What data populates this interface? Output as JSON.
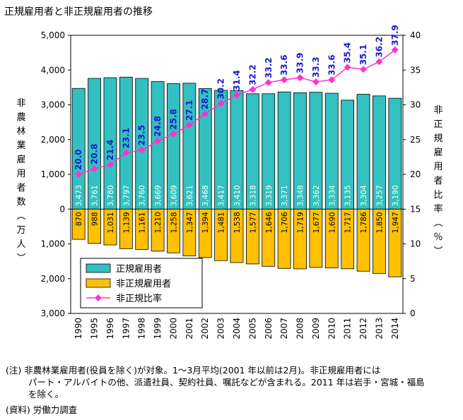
{
  "chart_data": {
    "type": "bar+line",
    "title": "正規雇用者と非正規雇用者の推移",
    "categories": [
      "1990",
      "1995",
      "1996",
      "1997",
      "1998",
      "1999",
      "2000",
      "2001",
      "2002",
      "2003",
      "2004",
      "2005",
      "2006",
      "2007",
      "2008",
      "2009",
      "2010",
      "2011",
      "2012",
      "2013",
      "2014"
    ],
    "series": [
      {
        "name": "正規雇用者",
        "type": "bar",
        "axis": "left",
        "direction": "up",
        "color": "#33c0c0",
        "values": [
          3473,
          3761,
          3780,
          3797,
          3760,
          3669,
          3609,
          3621,
          3468,
          3417,
          3410,
          3318,
          3319,
          3371,
          3348,
          3362,
          3334,
          3135,
          3304,
          3257,
          3190
        ],
        "labels": [
          "3,473",
          "3,761",
          "3,780",
          "3,797",
          "3,760",
          "3,669",
          "3,609",
          "3,621",
          "3,468",
          "3,417",
          "3,410",
          "3,318",
          "3,319",
          "3,371",
          "3,348",
          "3,362",
          "3,334",
          "3,135",
          "3,304",
          "3,257",
          "3,190"
        ]
      },
      {
        "name": "非正規雇用者",
        "type": "bar",
        "axis": "left",
        "direction": "down",
        "color": "#ffc000",
        "values": [
          870,
          988,
          1031,
          1139,
          1161,
          1210,
          1258,
          1347,
          1394,
          1481,
          1538,
          1577,
          1646,
          1706,
          1719,
          1677,
          1690,
          1717,
          1786,
          1850,
          1947
        ],
        "labels": [
          "870",
          "988",
          "1,031",
          "1,139",
          "1,161",
          "1,210",
          "1,258",
          "1,347",
          "1,394",
          "1,481",
          "1,538",
          "1,577",
          "1,646",
          "1,706",
          "1,719",
          "1,677",
          "1,690",
          "1,717",
          "1,786",
          "1,850",
          "1,947"
        ]
      },
      {
        "name": "非正規比率",
        "type": "line",
        "axis": "right",
        "color": "#ff33cc",
        "label_color": "#1a1acc",
        "values": [
          20.0,
          20.8,
          21.4,
          23.1,
          23.5,
          24.8,
          25.8,
          27.1,
          28.7,
          30.2,
          31.4,
          32.2,
          33.2,
          33.6,
          33.9,
          33.3,
          33.6,
          35.4,
          35.1,
          36.2,
          37.9
        ],
        "labels": [
          "20.0",
          "20.8",
          "21.4",
          "23.1",
          "23.5",
          "24.8",
          "25.8",
          "27.1",
          "28.7",
          "30.2",
          "31.4",
          "32.2",
          "33.2",
          "33.6",
          "33.9",
          "33.3",
          "33.6",
          "35.4",
          "35.1",
          "36.2",
          "37.9"
        ]
      }
    ],
    "y_left": {
      "label": "非農林業雇用者数（万人）",
      "range": [
        -3000,
        5000
      ],
      "ticks": [
        5000,
        4000,
        3000,
        2000,
        1000,
        0,
        -1000,
        -2000,
        -3000
      ],
      "tick_labels": [
        "5,000",
        "4,000",
        "3,000",
        "2,000",
        "1,000",
        "0",
        "1,000",
        "2,000",
        "3,000"
      ]
    },
    "y_right": {
      "label": "非正規雇用者比率（％）",
      "range": [
        0,
        40
      ],
      "ticks": [
        40,
        35,
        30,
        25,
        20,
        15,
        10,
        5,
        0
      ],
      "tick_labels": [
        "40",
        "35",
        "30",
        "25",
        "20",
        "15",
        "10",
        "5",
        "0"
      ]
    },
    "legend": {
      "placement": "bottom-left",
      "items": [
        "正規雇用者",
        "非正規雇用者",
        "非正規比率"
      ]
    }
  },
  "notes": {
    "line1": "(注) 非農林業雇用者(役員を除く)が対象。1～3月平均(2001 年以前は2月)。非正規雇用者には",
    "line2": "パート・アルバイトの他、派遣社員、契約社員、嘱託などが含まれる。2011 年は岩手・宮城・福島",
    "line3": "を除く。",
    "source": "(資料) 労働力調査"
  }
}
